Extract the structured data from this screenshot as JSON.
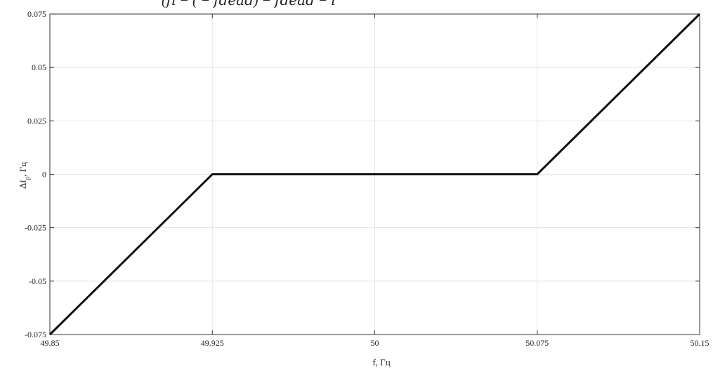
{
  "chart_data": {
    "type": "line",
    "title": "",
    "top_fragment_text": "(𝑓𝑖 − (  −  𝑓𝑑𝑒𝑎𝑑)               −  𝑓𝑑𝑒𝑎𝑑  −  𝑖",
    "xlabel": "f, Гц",
    "ylabel": "Δf р, Гц",
    "ylabel_main": "Δf",
    "ylabel_sub": "р",
    "ylabel_unit": ", Гц",
    "xlim": [
      49.85,
      50.15
    ],
    "ylim": [
      -0.075,
      0.075
    ],
    "x_ticks": [
      49.85,
      49.925,
      50,
      50.075,
      50.15
    ],
    "x_tick_labels": [
      "49.85",
      "49.925",
      "50",
      "50.075",
      "50.15"
    ],
    "y_ticks": [
      -0.075,
      -0.05,
      -0.025,
      0,
      0.025,
      0.05,
      0.075
    ],
    "y_tick_labels": [
      "-0.075",
      "-0.05",
      "-0.025",
      "0",
      "0.025",
      "0.05",
      "0.075"
    ],
    "grid": true,
    "series": [
      {
        "x": [
          49.85,
          49.925,
          50.075,
          50.15
        ],
        "y": [
          -0.075,
          0,
          0,
          0.075
        ]
      }
    ]
  },
  "colors": {
    "line": "#111111",
    "axis": "#333333",
    "grid": "#e3e3e3",
    "text": "#222222"
  }
}
